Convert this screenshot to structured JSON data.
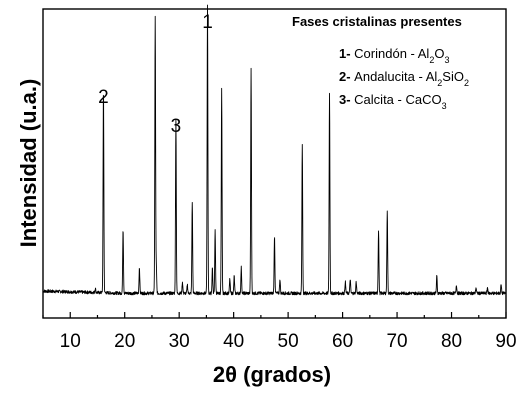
{
  "chart_data": {
    "type": "line",
    "title": "",
    "xlabel": "2θ (grados)",
    "ylabel": "Intensidad (u.a.)",
    "xlim": [
      5,
      90
    ],
    "ylim": [
      0,
      100
    ],
    "xticks": [
      "10",
      "20",
      "30",
      "40",
      "50",
      "60",
      "70",
      "80",
      "90"
    ],
    "grid": false,
    "background_level": 2,
    "peaks": [
      {
        "x": 14.6,
        "y": 1.5
      },
      {
        "x": 16.1,
        "y": 71.5
      },
      {
        "x": 19.7,
        "y": 22.5
      },
      {
        "x": 22.7,
        "y": 9
      },
      {
        "x": 25.6,
        "y": 96
      },
      {
        "x": 25.8,
        "y": 9
      },
      {
        "x": 29.4,
        "y": 61
      },
      {
        "x": 30.6,
        "y": 4
      },
      {
        "x": 31.5,
        "y": 3
      },
      {
        "x": 32.4,
        "y": 32
      },
      {
        "x": 35.2,
        "y": 100
      },
      {
        "x": 36.1,
        "y": 9
      },
      {
        "x": 36.6,
        "y": 22
      },
      {
        "x": 37.8,
        "y": 71
      },
      {
        "x": 39.3,
        "y": 5
      },
      {
        "x": 40.1,
        "y": 6
      },
      {
        "x": 41.4,
        "y": 9
      },
      {
        "x": 43.2,
        "y": 78
      },
      {
        "x": 47.5,
        "y": 20
      },
      {
        "x": 48.5,
        "y": 5
      },
      {
        "x": 52.6,
        "y": 52
      },
      {
        "x": 57.6,
        "y": 70
      },
      {
        "x": 60.5,
        "y": 4
      },
      {
        "x": 61.4,
        "y": 5
      },
      {
        "x": 62.5,
        "y": 4
      },
      {
        "x": 66.6,
        "y": 22
      },
      {
        "x": 68.2,
        "y": 29
      },
      {
        "x": 77.3,
        "y": 6
      },
      {
        "x": 80.9,
        "y": 3
      },
      {
        "x": 84.5,
        "y": 2
      },
      {
        "x": 86.6,
        "y": 2
      },
      {
        "x": 89.1,
        "y": 3
      }
    ],
    "peak_labels": [
      {
        "text": "1",
        "x": 35.2
      },
      {
        "text": "2",
        "x": 16.1
      },
      {
        "text": "3",
        "x": 29.4
      }
    ],
    "legend": {
      "title": "Fases cristalinas presentes",
      "position": "top-right",
      "entries": [
        {
          "num": "1-",
          "name": "Corindón",
          "formula": [
            [
              "Al",
              ""
            ],
            [
              "2",
              "sub"
            ],
            [
              "O",
              ""
            ],
            [
              "3",
              "sub"
            ]
          ]
        },
        {
          "num": "2-",
          "name": "Andalucita",
          "formula": [
            [
              "Al",
              ""
            ],
            [
              "2",
              "sub"
            ],
            [
              "SiO",
              ""
            ],
            [
              "2",
              "sub"
            ]
          ]
        },
        {
          "num": "3-",
          "name": "Calcita",
          "formula": [
            [
              "CaCO",
              ""
            ],
            [
              "3",
              "sub"
            ]
          ]
        }
      ],
      "separator": " - "
    }
  }
}
